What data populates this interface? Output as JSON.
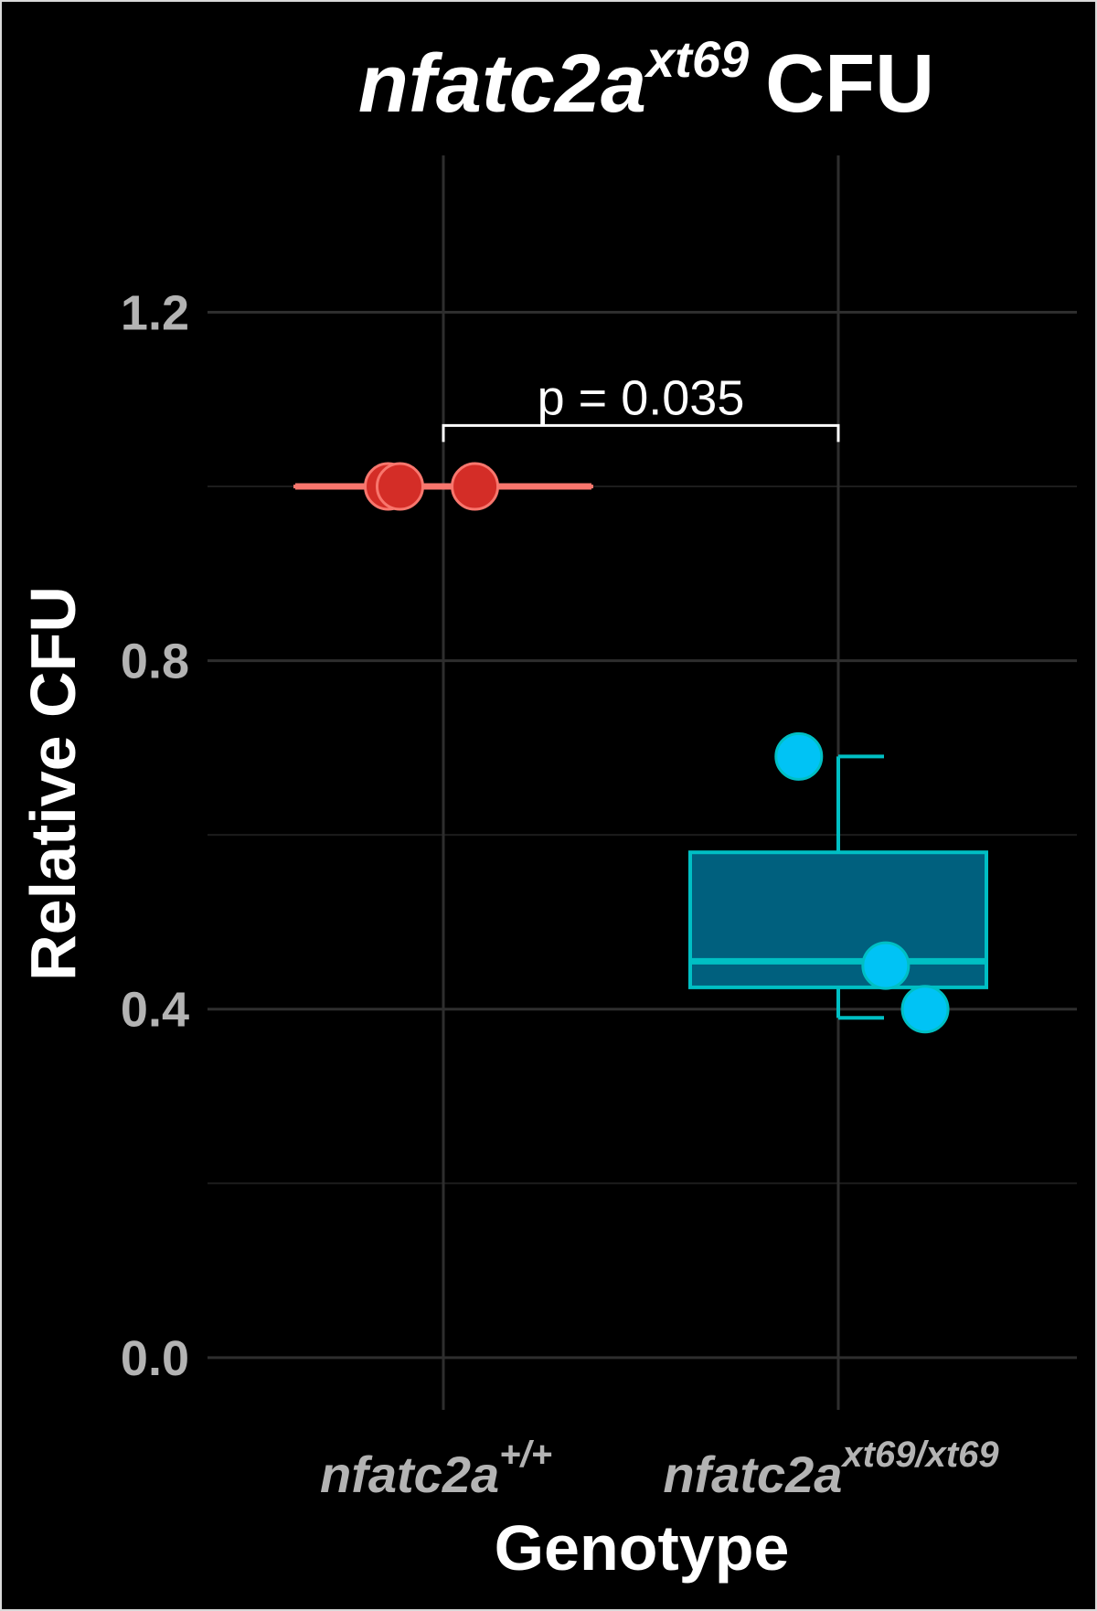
{
  "chart_data": {
    "type": "box",
    "title": {
      "main": "nfatc2a",
      "superscript": "xt69",
      "suffix": "CFU"
    },
    "xlabel": "Genotype",
    "ylabel": "Relative CFU",
    "ylim": [
      -0.06,
      1.38
    ],
    "yticks": [
      {
        "value": 0.0,
        "label": "0.0"
      },
      {
        "value": 0.4,
        "label": "0.4"
      },
      {
        "value": 0.8,
        "label": "0.8"
      },
      {
        "value": 1.2,
        "label": "1.2"
      }
    ],
    "minor_gridlines": [
      0.2,
      0.6,
      1.0
    ],
    "categories": [
      {
        "main": "nfatc2a",
        "superscript": "+/+"
      },
      {
        "main": "nfatc2a",
        "superscript": "xt69/xt69"
      }
    ],
    "series": [
      {
        "category_index": 0,
        "box_color": "#f8766d",
        "box_fill": "#f8766d",
        "point_color": "#d42d27",
        "box": {
          "min": 1.0,
          "q1": 1.0,
          "median": 1.0,
          "q3": 1.0,
          "max": 1.0
        },
        "points": [
          {
            "y": 1.0,
            "jitter": -0.14
          },
          {
            "y": 1.0,
            "jitter": -0.11
          },
          {
            "y": 1.0,
            "jitter": 0.08
          }
        ]
      },
      {
        "category_index": 1,
        "box_color": "#00bfc4",
        "box_fill": "#00607e",
        "point_color": "#00c3f5",
        "box": {
          "min": 0.39,
          "q1": 0.425,
          "median": 0.455,
          "q3": 0.58,
          "max": 0.69
        },
        "points": [
          {
            "y": 0.69,
            "jitter": -0.1
          },
          {
            "y": 0.45,
            "jitter": 0.12
          },
          {
            "y": 0.4,
            "jitter": 0.22
          }
        ]
      }
    ],
    "annotation": {
      "text": "p = 0.035",
      "y": 1.07,
      "from_category": 0,
      "to_category": 1
    },
    "grid": true,
    "background": "#000000",
    "legend": "none"
  }
}
